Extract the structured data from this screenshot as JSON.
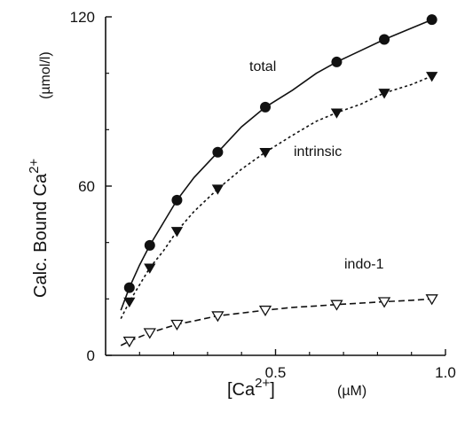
{
  "chart_data": {
    "type": "line",
    "y_label": {
      "main": "Calc. Bound Ca",
      "sup": "2+",
      "unit": "(µmol/l)"
    },
    "x_label": {
      "open": "[Ca",
      "sup": "2+",
      "close": "]",
      "unit": "(µM)"
    },
    "xlim": [
      0,
      1.0
    ],
    "ylim": [
      0,
      120
    ],
    "x_ticks": [
      0.5,
      1.0
    ],
    "x_tick_labels": [
      "0.5",
      "1.0"
    ],
    "y_ticks": [
      0,
      60,
      120
    ],
    "y_tick_labels": [
      "0",
      "60",
      "120"
    ],
    "grid": false,
    "series": [
      {
        "name": "total",
        "marker": "filled-circle",
        "line": "solid",
        "x": [
          0.07,
          0.13,
          0.21,
          0.33,
          0.47,
          0.68,
          0.82,
          0.96
        ],
        "y": [
          24,
          39,
          55,
          72,
          88,
          104,
          112,
          119
        ],
        "fit_x": [
          0.045,
          0.07,
          0.1,
          0.13,
          0.17,
          0.21,
          0.26,
          0.33,
          0.4,
          0.47,
          0.55,
          0.62,
          0.68,
          0.75,
          0.82,
          0.9,
          0.96
        ],
        "fit_y": [
          16,
          24,
          32,
          39,
          47,
          55,
          63,
          72,
          81,
          88,
          94,
          100,
          104,
          108,
          112,
          116,
          119
        ]
      },
      {
        "name": "intrinsic",
        "marker": "filled-triangle-down",
        "line": "dotted",
        "x": [
          0.07,
          0.13,
          0.21,
          0.33,
          0.47,
          0.68,
          0.82,
          0.96
        ],
        "y": [
          19,
          31,
          44,
          59,
          72,
          86,
          93,
          99
        ],
        "fit_x": [
          0.045,
          0.07,
          0.1,
          0.13,
          0.17,
          0.21,
          0.26,
          0.33,
          0.4,
          0.47,
          0.55,
          0.62,
          0.68,
          0.75,
          0.82,
          0.9,
          0.96
        ],
        "fit_y": [
          13,
          19,
          25,
          31,
          37,
          44,
          51,
          59,
          66,
          72,
          78,
          83,
          86,
          89,
          93,
          96,
          99
        ]
      },
      {
        "name": "indo-1",
        "marker": "open-triangle-down",
        "line": "dashed",
        "x": [
          0.07,
          0.13,
          0.21,
          0.33,
          0.47,
          0.68,
          0.82,
          0.96
        ],
        "y": [
          5,
          8,
          11,
          14,
          16,
          18,
          19,
          20
        ],
        "fit_x": [
          0.045,
          0.07,
          0.1,
          0.13,
          0.17,
          0.21,
          0.26,
          0.33,
          0.4,
          0.47,
          0.55,
          0.62,
          0.68,
          0.75,
          0.82,
          0.9,
          0.96
        ],
        "fit_y": [
          3.5,
          5,
          6.5,
          8,
          9.5,
          11,
          12.2,
          14,
          15,
          16,
          17,
          17.5,
          18,
          18.5,
          19,
          19.5,
          20
        ]
      }
    ]
  }
}
